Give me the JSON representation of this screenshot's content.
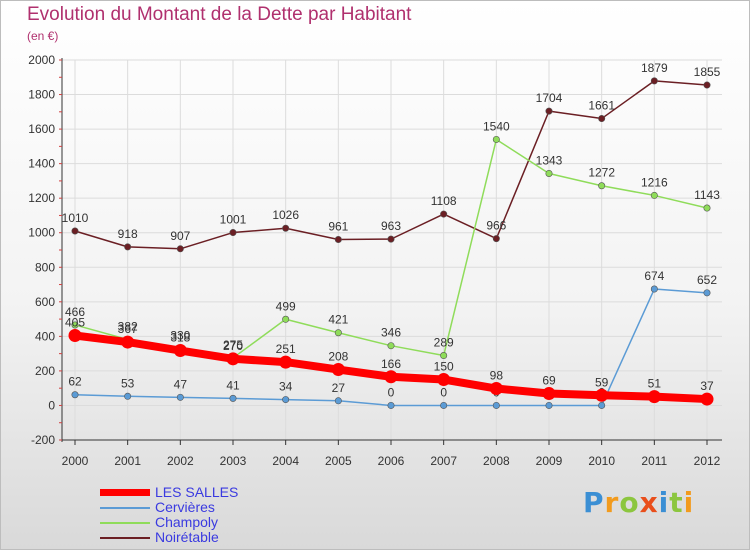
{
  "title": "Evolution du Montant de la Dette par Habitant",
  "subtitle": "(en €)",
  "logo": "Proxiti",
  "chart_data": {
    "type": "line",
    "x": [
      "2000",
      "2001",
      "2002",
      "2003",
      "2004",
      "2005",
      "2006",
      "2007",
      "2008",
      "2009",
      "2010",
      "2011",
      "2012"
    ],
    "ylim": [
      -200,
      2000
    ],
    "yticks": [
      -200,
      0,
      200,
      400,
      600,
      800,
      1000,
      1200,
      1400,
      1600,
      1800,
      2000
    ],
    "grid": true,
    "legend_position": "bottom-left",
    "series": [
      {
        "name": "Noirétable",
        "color": "#6b1f24",
        "values": [
          1010,
          918,
          907,
          1001,
          1026,
          961,
          963,
          1108,
          966,
          1704,
          1661,
          1879,
          1855
        ]
      },
      {
        "name": "Champoly",
        "color": "#8fdc5a",
        "values": [
          466,
          382,
          330,
          275,
          499,
          421,
          346,
          289,
          1540,
          1343,
          1272,
          1216,
          1143
        ]
      },
      {
        "name": "Cervières",
        "color": "#5b9bd5",
        "values": [
          62,
          53,
          47,
          41,
          34,
          27,
          0,
          0,
          0,
          0,
          0,
          674,
          652
        ]
      },
      {
        "name": "LES SALLES",
        "color": "#ff0000",
        "values": [
          405,
          367,
          318,
          270,
          251,
          208,
          166,
          150,
          98,
          69,
          59,
          51,
          37
        ]
      }
    ],
    "legend": [
      "LES SALLES",
      "Cervières",
      "Champoly",
      "Noirétable"
    ]
  }
}
